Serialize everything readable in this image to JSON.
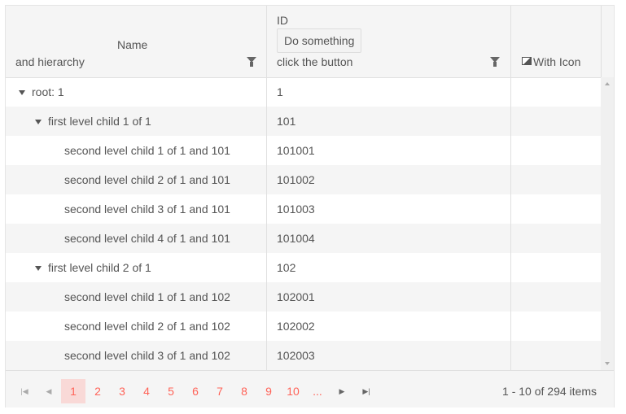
{
  "header": {
    "name_title": "Name",
    "name_subtitle": "and hierarchy",
    "id_title": "ID",
    "id_button": "Do something",
    "id_subtitle": "click the button",
    "icon_col": "With Icon"
  },
  "rows": [
    {
      "name": "root: 1",
      "id": "1",
      "level": 0,
      "expand": true
    },
    {
      "name": "first level child 1 of 1",
      "id": "101",
      "level": 1,
      "expand": true
    },
    {
      "name": "second level child 1 of 1 and 101",
      "id": "101001",
      "level": 2
    },
    {
      "name": "second level child 2 of 1 and 101",
      "id": "101002",
      "level": 2
    },
    {
      "name": "second level child 3 of 1 and 101",
      "id": "101003",
      "level": 2
    },
    {
      "name": "second level child 4 of 1 and 101",
      "id": "101004",
      "level": 2
    },
    {
      "name": "first level child 2 of 1",
      "id": "102",
      "level": 1,
      "expand": true
    },
    {
      "name": "second level child 1 of 1 and 102",
      "id": "102001",
      "level": 2
    },
    {
      "name": "second level child 2 of 1 and 102",
      "id": "102002",
      "level": 2
    },
    {
      "name": "second level child 3 of 1 and 102",
      "id": "102003",
      "level": 2
    }
  ],
  "pager": {
    "pages": [
      "1",
      "2",
      "3",
      "4",
      "5",
      "6",
      "7",
      "8",
      "9",
      "10",
      "..."
    ],
    "current": "1",
    "info": "1 - 10 of 294 items"
  },
  "colors": {
    "accent": "#ff6358",
    "selected_bg": "#f9d9d7"
  }
}
